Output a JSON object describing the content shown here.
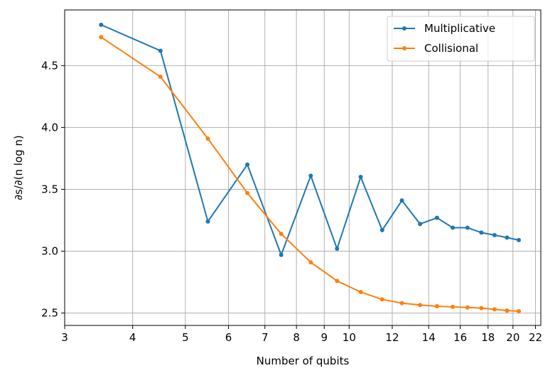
{
  "chart_data": {
    "type": "line",
    "xlabel": "Number of qubits",
    "ylabel": "∂s/∂(n log n)",
    "xscale": "log",
    "xlim": [
      3,
      22.5
    ],
    "ylim": [
      2.4,
      4.95
    ],
    "xticks": [
      {
        "value": 3,
        "label": "3"
      },
      {
        "value": 4,
        "label": "4"
      },
      {
        "value": 5,
        "label": "5"
      },
      {
        "value": 6,
        "label": "6"
      },
      {
        "value": 7,
        "label": "7"
      },
      {
        "value": 8,
        "label": "8"
      },
      {
        "value": 9,
        "label": "9"
      },
      {
        "value": 10,
        "label": "10"
      },
      {
        "value": 12,
        "label": "12"
      },
      {
        "value": 14,
        "label": "14"
      },
      {
        "value": 16,
        "label": "16"
      },
      {
        "value": 18,
        "label": "18"
      },
      {
        "value": 20,
        "label": "20"
      },
      {
        "value": 22,
        "label": "22"
      }
    ],
    "yticks": [
      {
        "value": 2.5,
        "label": "2.5"
      },
      {
        "value": 3.0,
        "label": "3.0"
      },
      {
        "value": 3.5,
        "label": "3.5"
      },
      {
        "value": 4.0,
        "label": "4.0"
      },
      {
        "value": 4.5,
        "label": "4.5"
      }
    ],
    "grid": true,
    "legend_position": "top-right",
    "x": [
      3.5,
      4.5,
      5.5,
      6.5,
      7.5,
      8.5,
      9.5,
      10.5,
      11.5,
      12.5,
      13.5,
      14.5,
      15.5,
      16.5,
      17.5,
      18.5,
      19.5,
      20.5
    ],
    "series": [
      {
        "name": "Multiplicative",
        "color": "#1f77b4",
        "values": [
          4.83,
          4.62,
          3.24,
          3.7,
          2.97,
          3.61,
          3.02,
          3.6,
          3.17,
          3.41,
          3.22,
          3.27,
          3.19,
          3.19,
          3.15,
          3.13,
          3.11,
          3.09
        ]
      },
      {
        "name": "Collisional",
        "color": "#ff7f0e",
        "values": [
          4.73,
          4.41,
          3.91,
          3.47,
          3.14,
          2.91,
          2.76,
          2.67,
          2.61,
          2.58,
          2.565,
          2.555,
          2.55,
          2.545,
          2.54,
          2.53,
          2.52,
          2.515
        ]
      }
    ]
  }
}
